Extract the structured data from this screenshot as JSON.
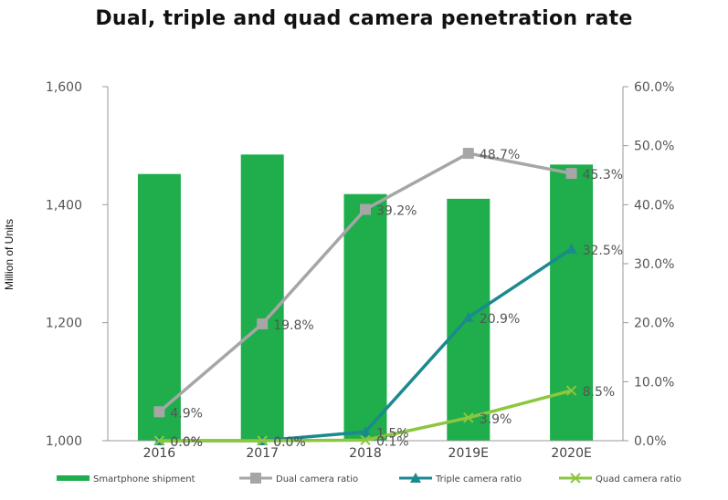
{
  "chart_data": {
    "type": "bar",
    "title": "Dual, triple and quad camera penetration rate",
    "ylabel": "Million of Units",
    "ylim": [
      1000,
      1600
    ],
    "y2lim": [
      0,
      60
    ],
    "categories": [
      "2016",
      "2017",
      "2018",
      "2019E",
      "2020E"
    ],
    "y_ticks": [
      "1,000",
      "1,200",
      "1,400",
      "1,600"
    ],
    "y2_ticks": [
      "0.0%",
      "10.0%",
      "20.0%",
      "30.0%",
      "40.0%",
      "50.0%",
      "60.0%"
    ],
    "legend_position": "bottom",
    "series": [
      {
        "name": "Smartphone shipment",
        "type": "bar",
        "axis": "left",
        "color": "#1fae4b",
        "values": [
          1452,
          1485,
          1418,
          1410,
          1468
        ]
      },
      {
        "name": "Dual camera ratio",
        "type": "line",
        "axis": "right",
        "marker": "square",
        "color": "#a6a6a6",
        "values": [
          4.9,
          19.8,
          39.2,
          48.7,
          45.3
        ],
        "labels": [
          "4.9%",
          "19.8%",
          "39.2%",
          "48.7%",
          "45.3%"
        ]
      },
      {
        "name": "Triple camera ratio",
        "type": "line",
        "axis": "right",
        "marker": "triangle",
        "color": "#1b8a8f",
        "values": [
          0.0,
          0.0,
          1.5,
          20.9,
          32.5
        ],
        "labels": [
          "0.0%",
          "0.0%",
          "1.5%",
          "20.9%",
          "32.5%"
        ]
      },
      {
        "name": "Quad camera ratio",
        "type": "line",
        "axis": "right",
        "marker": "x",
        "color": "#8dc63f",
        "values": [
          0.0,
          0.0,
          0.1,
          3.9,
          8.5
        ],
        "labels": [
          "0.0%",
          "0.0%",
          "0.1%",
          "3.9%",
          "8.5%"
        ]
      }
    ]
  }
}
